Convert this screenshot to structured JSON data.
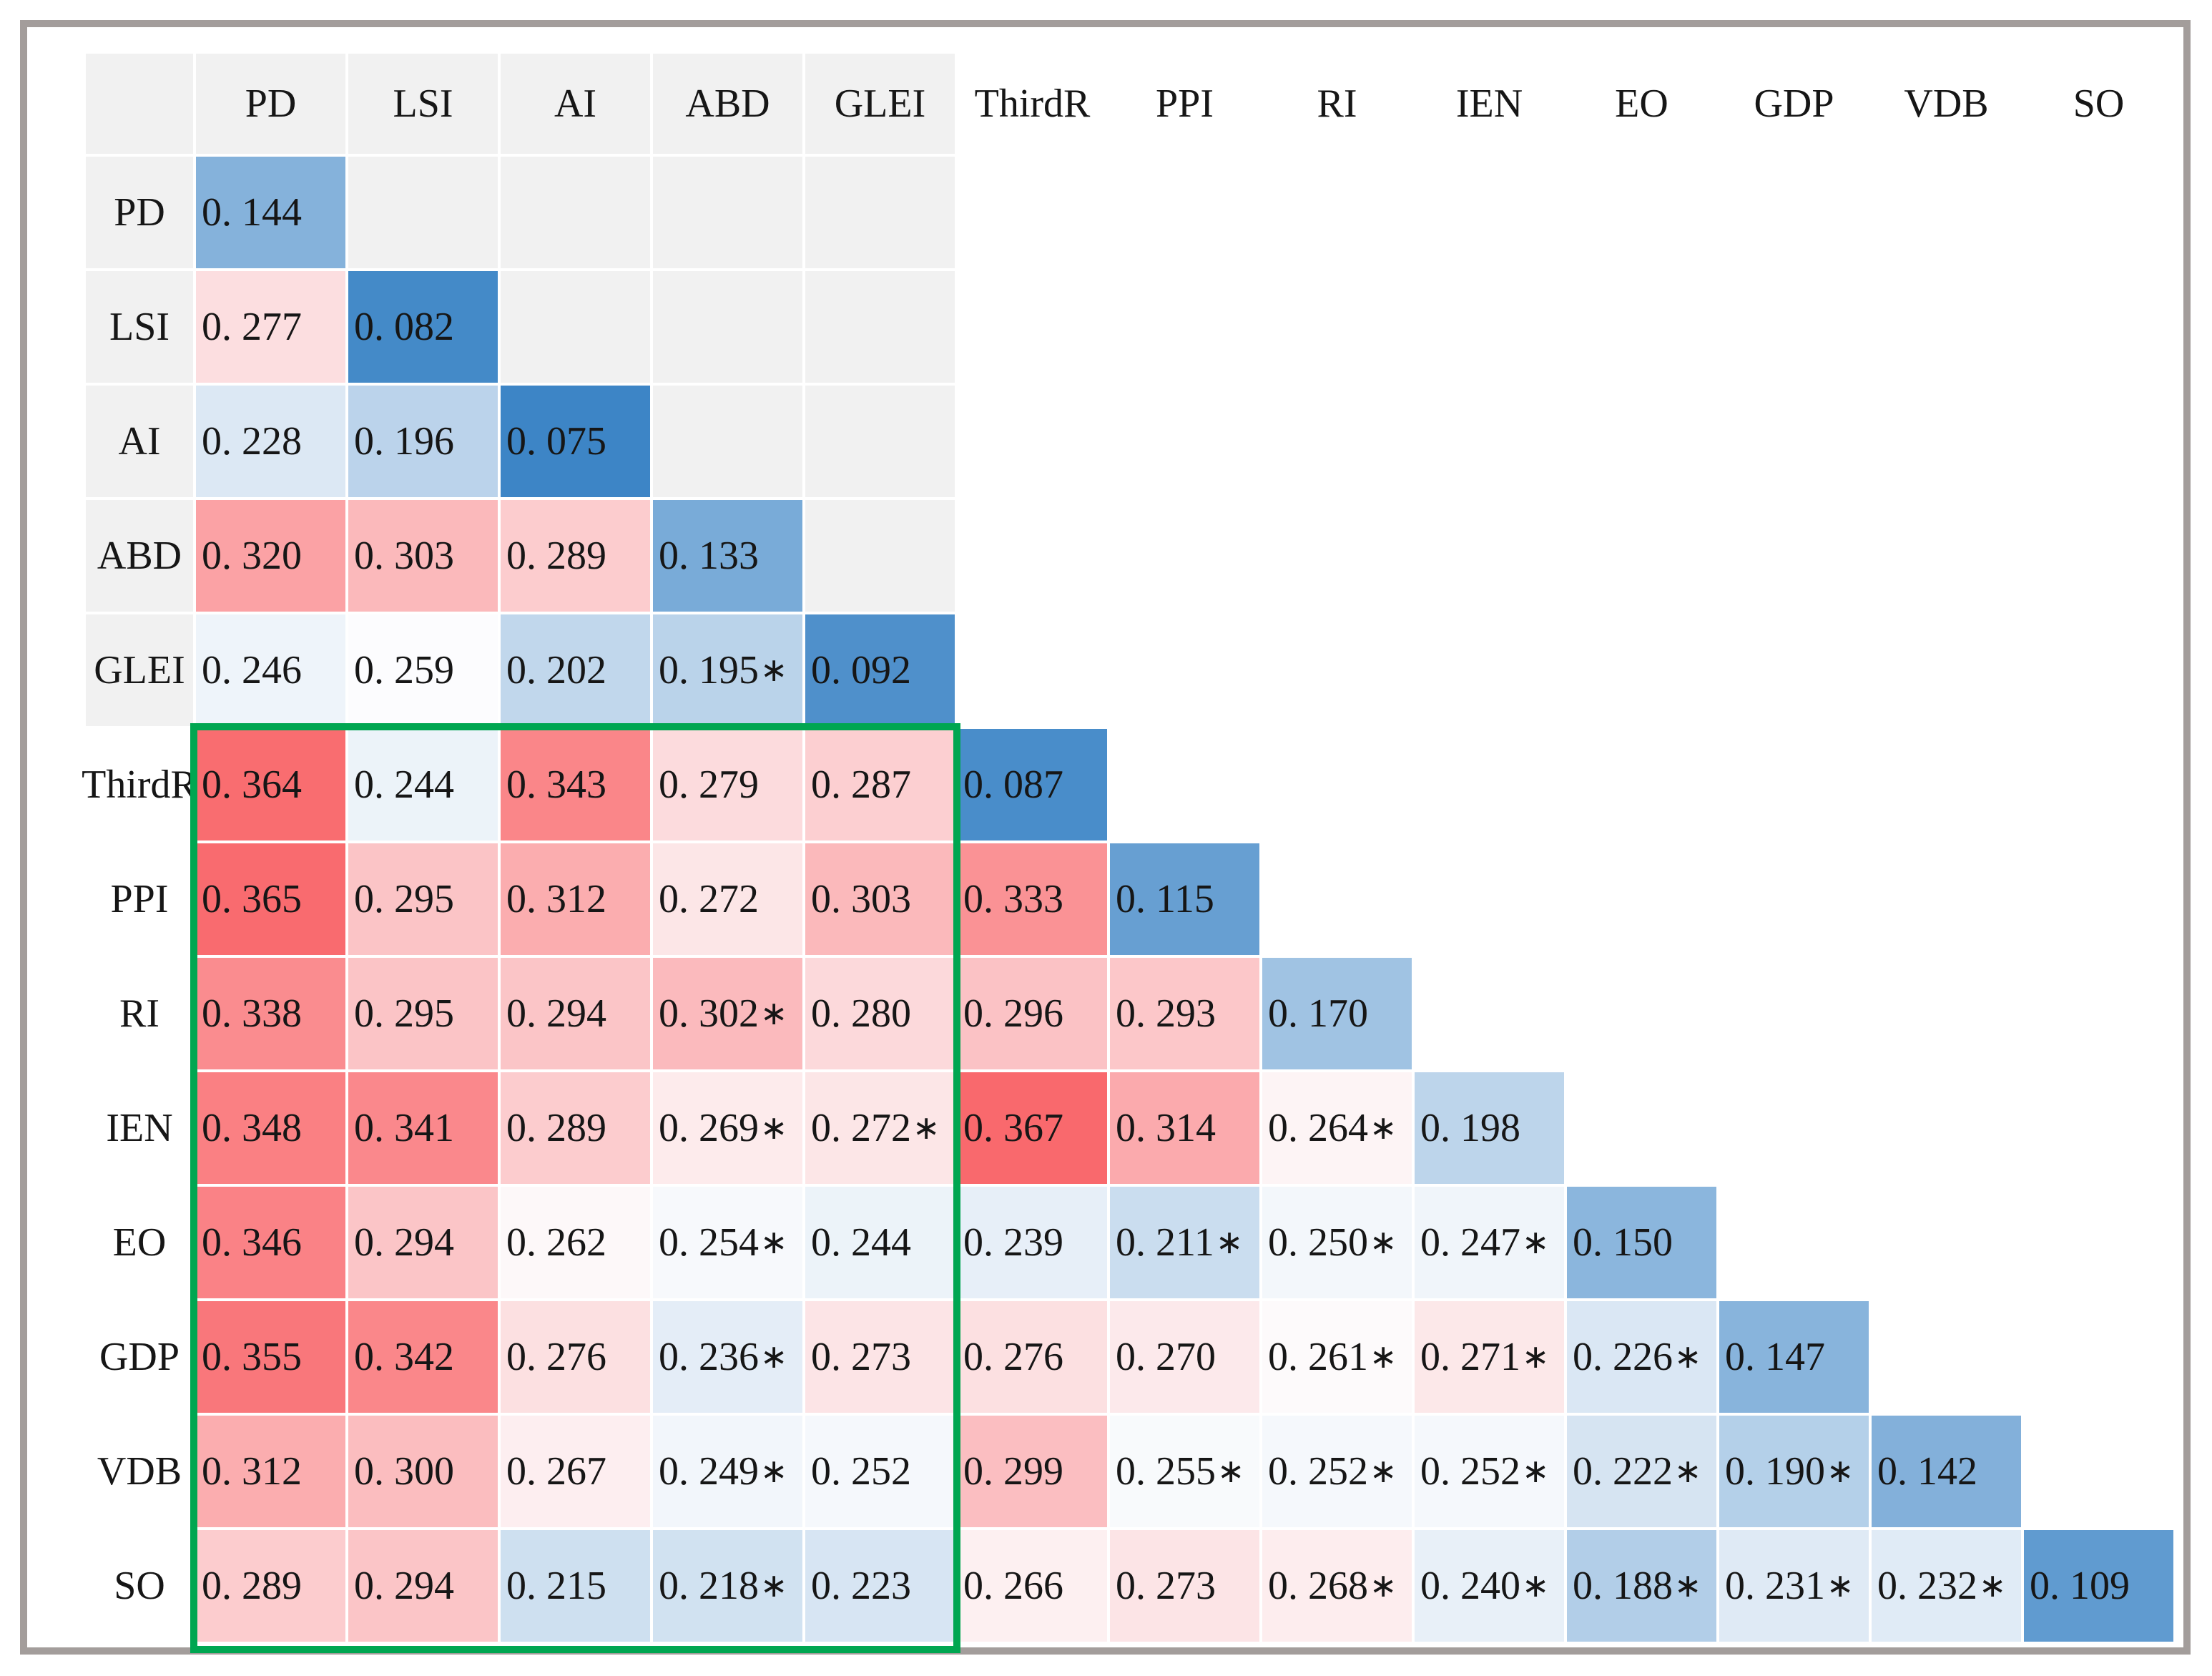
{
  "chart_data": {
    "type": "heatmap",
    "title": "",
    "description": "Lower-triangular correlation/heterogeneity matrix with diverging blue-white-red coloring; diagonal cells in blue; green rectangle highlighting rows ThirdR–SO by columns PD–GLEI",
    "variables": [
      "PD",
      "LSI",
      "AI",
      "ABD",
      "GLEI",
      "ThirdR",
      "PPI",
      "RI",
      "IEN",
      "EO",
      "GDP",
      "VDB",
      "SO"
    ],
    "cell_labels": [
      [
        "0. 144"
      ],
      [
        "0. 277",
        "0. 082"
      ],
      [
        "0. 228",
        "0. 196",
        "0. 075"
      ],
      [
        "0. 320",
        "0. 303",
        "0. 289",
        "0. 133"
      ],
      [
        "0. 246",
        "0. 259",
        "0. 202",
        "0. 195*",
        "0. 092"
      ],
      [
        "0. 364",
        "0. 244",
        "0. 343",
        "0. 279",
        "0. 287",
        "0. 087"
      ],
      [
        "0. 365",
        "0. 295",
        "0. 312",
        "0. 272",
        "0. 303",
        "0. 333",
        "0. 115"
      ],
      [
        "0. 338",
        "0. 295",
        "0. 294",
        "0. 302*",
        "0. 280",
        "0. 296",
        "0. 293",
        "0. 170"
      ],
      [
        "0. 348",
        "0. 341",
        "0. 289",
        "0. 269*",
        "0. 272*",
        "0. 367",
        "0. 314",
        "0. 264*",
        "0. 198"
      ],
      [
        "0. 346",
        "0. 294",
        "0. 262",
        "0. 254*",
        "0. 244",
        "0. 239",
        "0. 211*",
        "0. 250*",
        "0. 247*",
        "0. 150"
      ],
      [
        "0. 355",
        "0. 342",
        "0. 276",
        "0. 236*",
        "0. 273",
        "0. 276",
        "0. 270",
        "0. 261*",
        "0. 271*",
        "0. 226*",
        "0. 147"
      ],
      [
        "0. 312",
        "0. 300",
        "0. 267",
        "0. 249*",
        "0. 252",
        "0. 299",
        "0. 255*",
        "0. 252*",
        "0. 252*",
        "0. 222*",
        "0. 190*",
        "0. 142"
      ],
      [
        "0. 289",
        "0. 294",
        "0. 215",
        "0. 218*",
        "0. 223",
        "0. 266",
        "0. 273",
        "0. 268*",
        "0. 240*",
        "0. 188*",
        "0. 231*",
        "0. 232*",
        "0. 109"
      ]
    ],
    "values": [
      [
        0.144
      ],
      [
        0.277,
        0.082
      ],
      [
        0.228,
        0.196,
        0.075
      ],
      [
        0.32,
        0.303,
        0.289,
        0.133
      ],
      [
        0.246,
        0.259,
        0.202,
        0.195,
        0.092
      ],
      [
        0.364,
        0.244,
        0.343,
        0.279,
        0.287,
        0.087
      ],
      [
        0.365,
        0.295,
        0.312,
        0.272,
        0.303,
        0.333,
        0.115
      ],
      [
        0.338,
        0.295,
        0.294,
        0.302,
        0.28,
        0.296,
        0.293,
        0.17
      ],
      [
        0.348,
        0.341,
        0.289,
        0.269,
        0.272,
        0.367,
        0.314,
        0.264,
        0.198
      ],
      [
        0.346,
        0.294,
        0.262,
        0.254,
        0.244,
        0.239,
        0.211,
        0.25,
        0.247,
        0.15
      ],
      [
        0.355,
        0.342,
        0.276,
        0.236,
        0.273,
        0.276,
        0.27,
        0.261,
        0.271,
        0.226,
        0.147
      ],
      [
        0.312,
        0.3,
        0.267,
        0.249,
        0.252,
        0.299,
        0.255,
        0.252,
        0.252,
        0.222,
        0.19,
        0.142
      ],
      [
        0.289,
        0.294,
        0.215,
        0.218,
        0.223,
        0.266,
        0.273,
        0.268,
        0.24,
        0.188,
        0.231,
        0.232,
        0.109
      ]
    ],
    "significance_marker": "*",
    "colormap": {
      "type": "diverging",
      "blue_max": "#3d85c6",
      "white": "#fdfdfe",
      "red_max": "#f9696d",
      "domain_min": 0.075,
      "midpoint": 0.26,
      "domain_max": 0.367
    },
    "gray_block": {
      "bg": "#f1f1f1",
      "rows_through_index": 4,
      "cols_through_index": 4
    },
    "highlight_box": {
      "row_start": "ThirdR",
      "row_end": "SO",
      "col_start": "PD",
      "col_end": "GLEI",
      "color": "#00a651"
    },
    "frame_border_color": "#a39d9b",
    "legend_position": "none",
    "grid": "white gaps between cells"
  }
}
